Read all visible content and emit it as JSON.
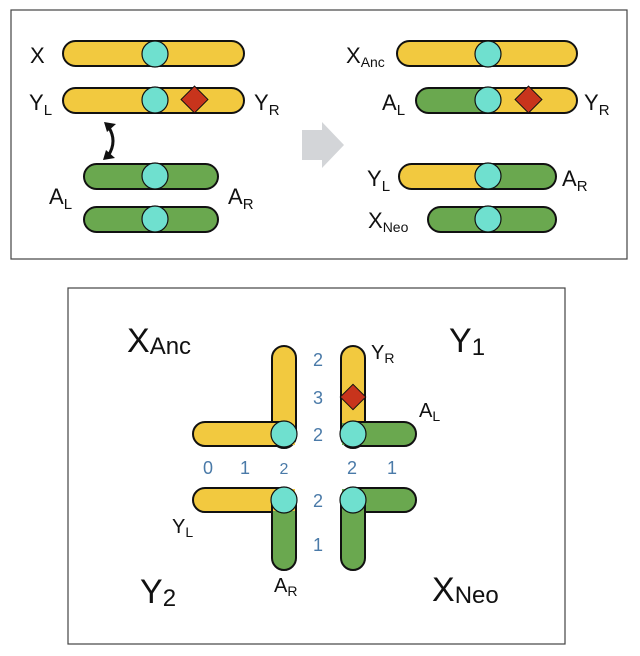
{
  "colors": {
    "yellow": "#f2c93f",
    "green": "#6aa84f",
    "centromere": "#6fe0cf",
    "diamond": "#c8341c",
    "arrow": "#d3d5d8",
    "border": "#444444",
    "number": "#4a7aa8"
  },
  "top_panel": {
    "left": {
      "x_label": {
        "base": "X",
        "sub": ""
      },
      "yl_label": {
        "base": "Y",
        "sub": "L"
      },
      "yr_label": {
        "base": "Y",
        "sub": "R"
      },
      "al_label": {
        "base": "A",
        "sub": "L"
      },
      "ar_label": {
        "base": "A",
        "sub": "R"
      }
    },
    "transition_arrow_icon": "right-arrow-icon",
    "swap_arrow_icon": "double-curved-arrow-icon",
    "right": {
      "xanc_label": {
        "base": "X",
        "sub": "Anc"
      },
      "al_label": {
        "base": "A",
        "sub": "L"
      },
      "yr_label": {
        "base": "Y",
        "sub": "R"
      },
      "yl_label": {
        "base": "Y",
        "sub": "L"
      },
      "ar_label": {
        "base": "A",
        "sub": "R"
      },
      "xneo_label": {
        "base": "X",
        "sub": "Neo"
      }
    }
  },
  "bottom_panel": {
    "quad_labels": {
      "xanc": {
        "base": "X",
        "sub": "Anc"
      },
      "y1": {
        "base": "Y",
        "sub": "1"
      },
      "y2": {
        "base": "Y",
        "sub": "2"
      },
      "xneo": {
        "base": "X",
        "sub": "Neo"
      }
    },
    "arm_labels": {
      "yr": {
        "base": "Y",
        "sub": "R"
      },
      "al": {
        "base": "A",
        "sub": "L"
      },
      "yl": {
        "base": "Y",
        "sub": "L"
      },
      "ar": {
        "base": "A",
        "sub": "R"
      }
    },
    "numbers": {
      "col_top": "2",
      "col_mid": "3",
      "col_center_top": "2",
      "row_0": "0",
      "row_1": "1",
      "row_2_left": "2",
      "row_2_right": "2",
      "row_1_right": "1",
      "col_center_bottom": "2",
      "col_bottom": "1"
    }
  }
}
